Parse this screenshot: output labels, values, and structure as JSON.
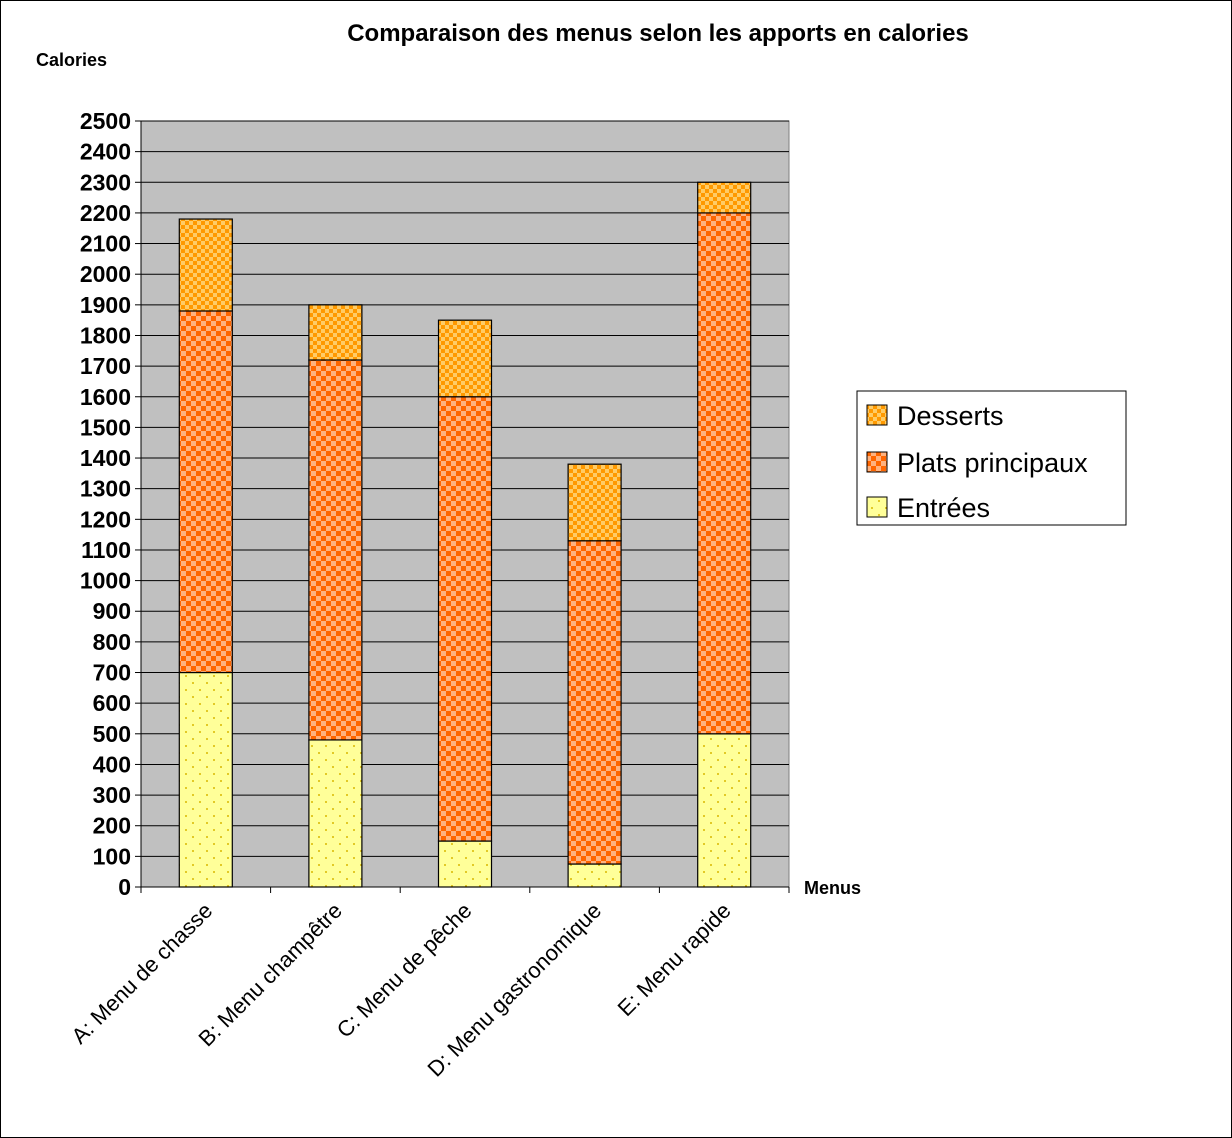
{
  "chart_data": {
    "type": "bar",
    "stacked": true,
    "title": "Comparaison des menus selon les apports en calories",
    "ylabel": "Calories",
    "xlabel": "Menus",
    "ylim": [
      0,
      2500
    ],
    "ytick_step": 100,
    "grid": true,
    "legend_position": "right",
    "plot_background": "#c0c0c0",
    "categories": [
      "A: Menu de chasse",
      "B: Menu champêtre",
      "C: Menu de pêche",
      "D: Menu gastronomique",
      "E: Menu rapide"
    ],
    "series": [
      {
        "name": "Entrées",
        "values": [
          700,
          480,
          150,
          75,
          500
        ],
        "color": "#ffff99",
        "pattern": "dots"
      },
      {
        "name": "Plats principaux",
        "values": [
          1180,
          1240,
          1450,
          1055,
          1700
        ],
        "color": "#ff6600",
        "pattern": "checker"
      },
      {
        "name": "Desserts",
        "values": [
          300,
          180,
          250,
          250,
          100
        ],
        "color": "#ff9900",
        "pattern": "checker-fine"
      }
    ],
    "legend_order": [
      "Desserts",
      "Plats principaux",
      "Entrées"
    ]
  }
}
